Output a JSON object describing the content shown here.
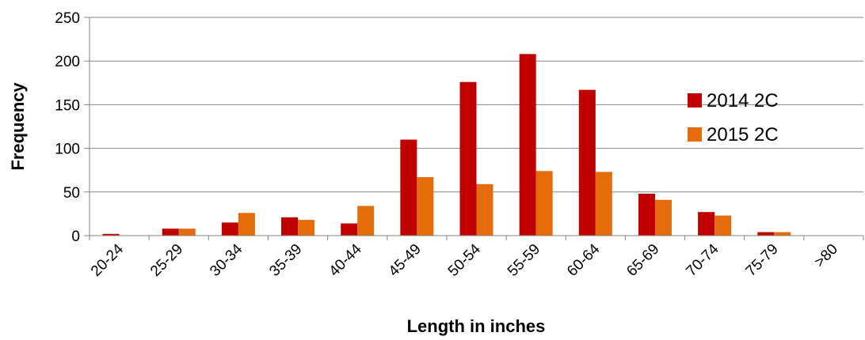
{
  "chart_data": {
    "type": "bar",
    "title": "",
    "xlabel": "Length in inches",
    "ylabel": "Frequency",
    "ylim": [
      0,
      250
    ],
    "yticks": [
      "0",
      "50",
      "100",
      "150",
      "200",
      "250"
    ],
    "categories": [
      "20-24",
      "25-29",
      "30-34",
      "35-39",
      "40-44",
      "45-49",
      "50-54",
      "55-59",
      "60-64",
      "65-69",
      "70-74",
      "75-79",
      ">80"
    ],
    "series": [
      {
        "name": "2014 2C",
        "color": "#c00000",
        "values": [
          2,
          8,
          15,
          21,
          14,
          110,
          176,
          208,
          167,
          48,
          27,
          4,
          0
        ]
      },
      {
        "name": "2015 2C",
        "color": "#e46c0a",
        "values": [
          0,
          8,
          26,
          18,
          34,
          67,
          59,
          74,
          73,
          41,
          23,
          4,
          0
        ]
      }
    ],
    "grid": "horizontal",
    "legend_position": "right"
  }
}
